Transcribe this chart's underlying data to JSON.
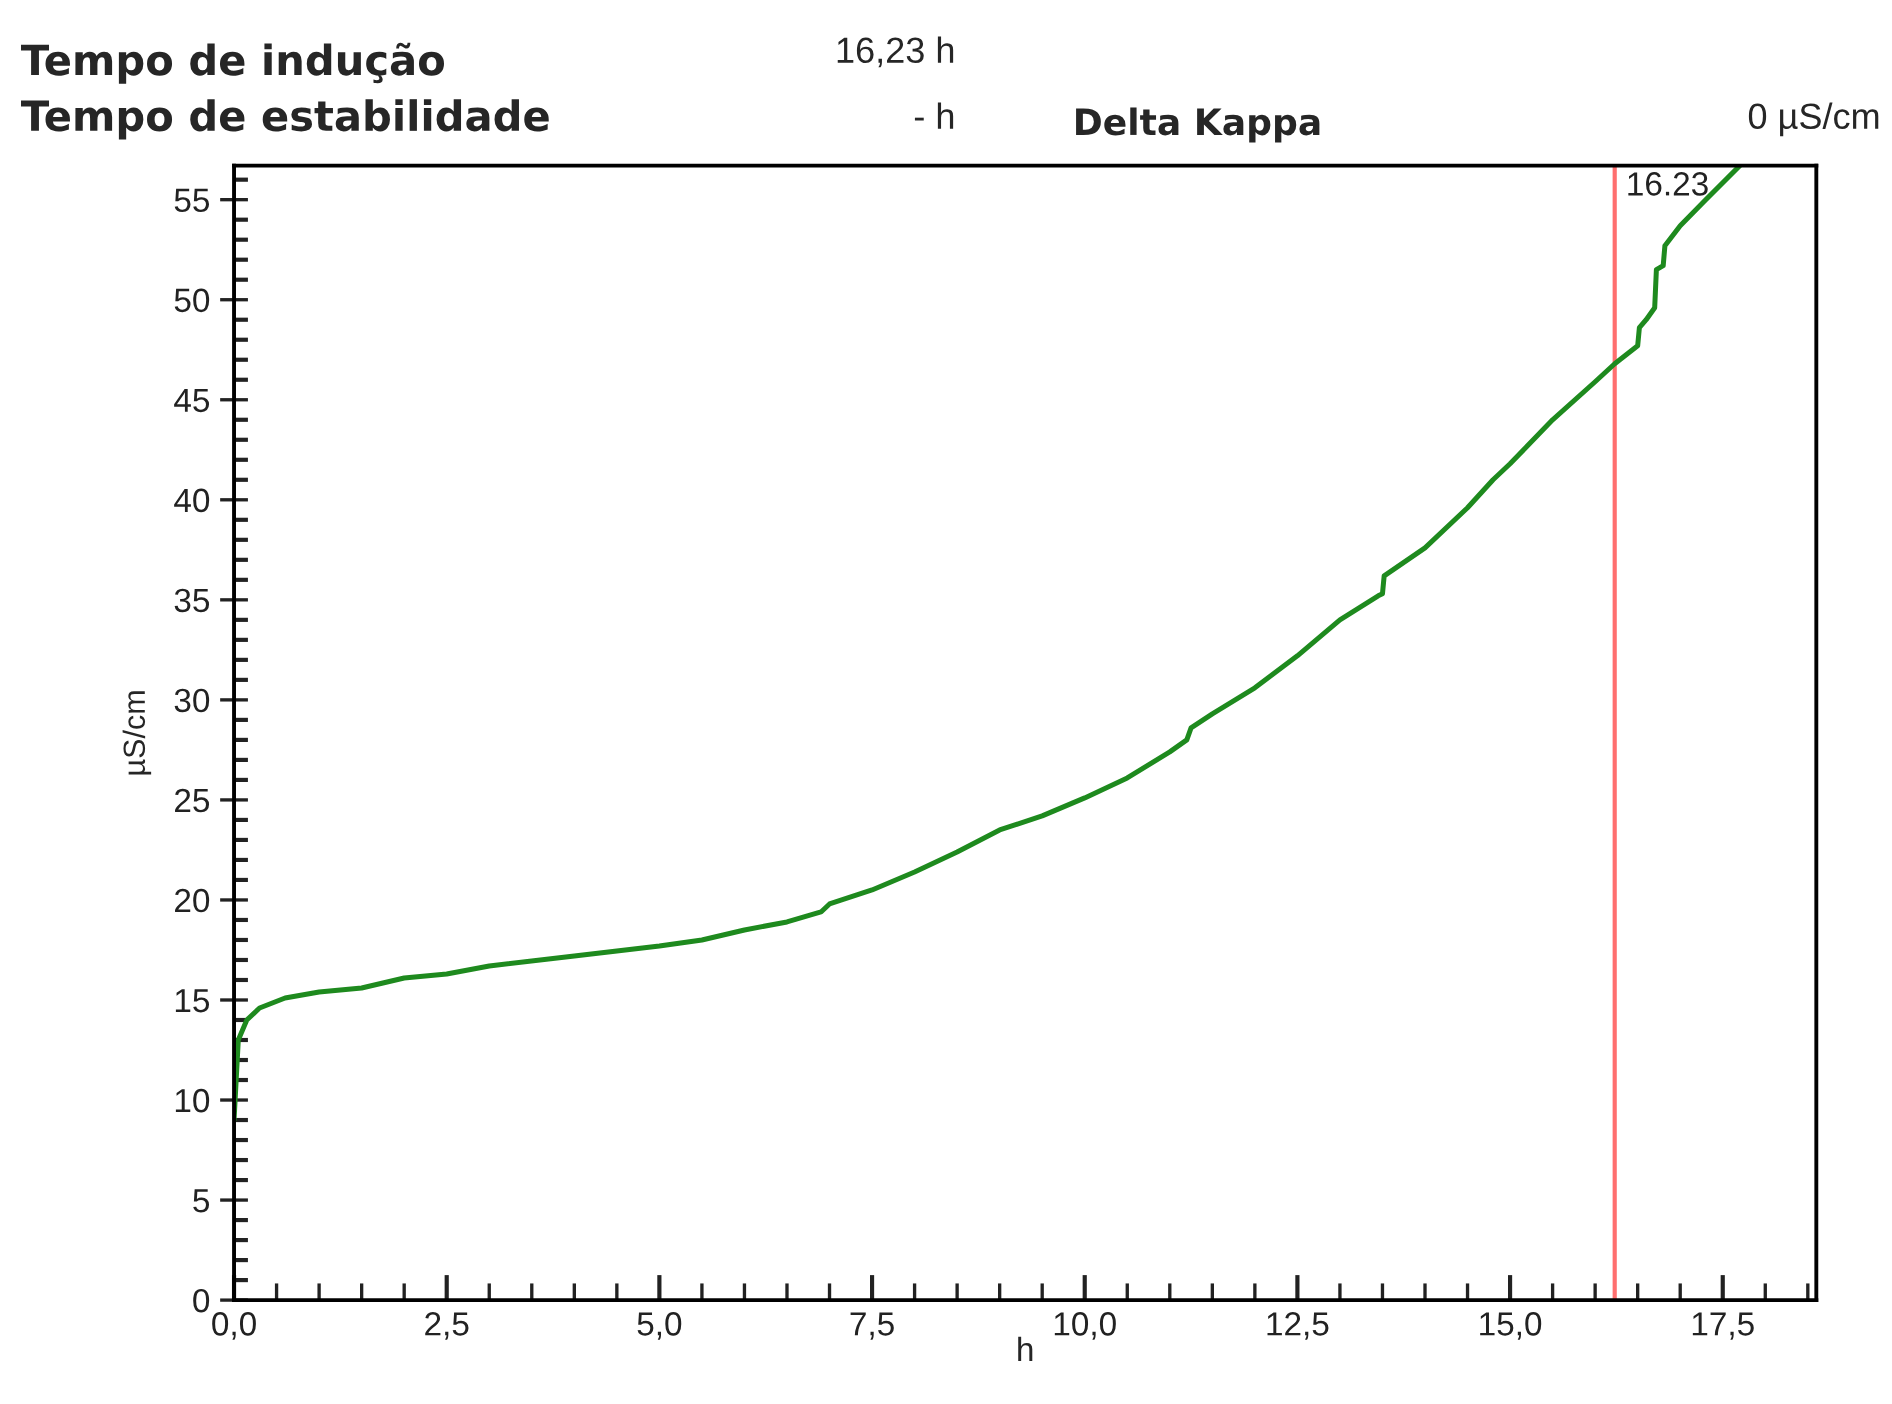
{
  "chart_data": {
    "type": "line",
    "xlabel": "h",
    "ylabel": "µS/cm",
    "annotations": [
      "Tempo de indução",
      "16,23 h",
      "Tempo de estabilidade",
      "- h",
      "Delta Kappa",
      "0 µS/cm"
    ],
    "x": [
      0,
      0.05,
      0.15,
      0.3,
      0.6,
      1,
      1.5,
      2,
      2.5,
      3,
      4,
      5,
      5.5,
      6,
      6.5,
      6.9,
      7,
      7.5,
      8,
      8.5,
      9,
      9.5,
      10,
      10.5,
      11,
      11.2,
      11.25,
      11.5,
      12,
      12.5,
      13,
      13.45,
      13.5,
      13.52,
      14,
      14.5,
      14.8,
      15,
      15.5,
      16,
      16.23,
      16.5,
      16.52,
      16.6,
      16.7,
      16.72,
      16.8,
      16.82,
      17,
      17.3,
      17.7
    ],
    "series": [
      {
        "color": "#1e8a1e",
        "values": [
          9,
          13,
          14,
          14.6,
          15.1,
          15.4,
          15.6,
          16.1,
          16.3,
          16.7,
          17.2,
          17.7,
          18.0,
          18.5,
          18.9,
          19.4,
          19.8,
          20.5,
          21.4,
          22.4,
          23.5,
          24.2,
          25.1,
          26.1,
          27.4,
          28,
          28.6,
          29.3,
          30.6,
          32.2,
          34,
          35.2,
          35.3,
          36.2,
          37.6,
          39.6,
          41,
          41.8,
          44,
          45.9,
          46.8,
          47.7,
          48.6,
          49,
          49.6,
          51.5,
          51.7,
          52.7,
          53.7,
          55,
          56.7
        ]
      }
    ],
    "ref_lines": [
      {
        "axis": "x",
        "value": 16.23,
        "label": "16.23",
        "color": "#ff6f6f"
      }
    ],
    "xlim": [
      0,
      18.6
    ],
    "ylim": [
      0,
      56.7
    ],
    "xticks": [
      {
        "value": 0,
        "label": "0,0"
      },
      {
        "value": 2.5,
        "label": "2,5"
      },
      {
        "value": 5,
        "label": "5,0"
      },
      {
        "value": 7.5,
        "label": "7,5"
      },
      {
        "value": 10,
        "label": "10,0"
      },
      {
        "value": 12.5,
        "label": "12,5"
      },
      {
        "value": 15,
        "label": "15,0"
      },
      {
        "value": 17.5,
        "label": "17,5"
      },
      {
        "value": 0.5,
        "label": null
      },
      {
        "value": 1,
        "label": null
      },
      {
        "value": 1.5,
        "label": null
      },
      {
        "value": 2,
        "label": null
      },
      {
        "value": 3,
        "label": null
      },
      {
        "value": 3.5,
        "label": null
      },
      {
        "value": 4,
        "label": null
      },
      {
        "value": 4.5,
        "label": null
      },
      {
        "value": 5.5,
        "label": null
      },
      {
        "value": 6,
        "label": null
      },
      {
        "value": 6.5,
        "label": null
      },
      {
        "value": 7,
        "label": null
      },
      {
        "value": 8,
        "label": null
      },
      {
        "value": 8.5,
        "label": null
      },
      {
        "value": 9,
        "label": null
      },
      {
        "value": 9.5,
        "label": null
      },
      {
        "value": 10.5,
        "label": null
      },
      {
        "value": 11,
        "label": null
      },
      {
        "value": 11.5,
        "label": null
      },
      {
        "value": 12,
        "label": null
      },
      {
        "value": 13,
        "label": null
      },
      {
        "value": 13.5,
        "label": null
      },
      {
        "value": 14,
        "label": null
      },
      {
        "value": 14.5,
        "label": null
      },
      {
        "value": 15.5,
        "label": null
      },
      {
        "value": 16,
        "label": null
      },
      {
        "value": 16.5,
        "label": null
      },
      {
        "value": 17,
        "label": null
      },
      {
        "value": 18,
        "label": null
      },
      {
        "value": 18.5,
        "label": null
      }
    ],
    "yticks": [
      0,
      5,
      10,
      15,
      20,
      25,
      30,
      35,
      40,
      45,
      50,
      55,
      {
        "value": 1,
        "label": null
      },
      {
        "value": 2,
        "label": null
      },
      {
        "value": 3,
        "label": null
      },
      {
        "value": 4,
        "label": null
      },
      {
        "value": 6,
        "label": null
      },
      {
        "value": 7,
        "label": null
      },
      {
        "value": 8,
        "label": null
      },
      {
        "value": 9,
        "label": null
      },
      {
        "value": 11,
        "label": null
      },
      {
        "value": 12,
        "label": null
      },
      {
        "value": 13,
        "label": null
      },
      {
        "value": 14,
        "label": null
      },
      {
        "value": 16,
        "label": null
      },
      {
        "value": 17,
        "label": null
      },
      {
        "value": 18,
        "label": null
      },
      {
        "value": 19,
        "label": null
      },
      {
        "value": 21,
        "label": null
      },
      {
        "value": 22,
        "label": null
      },
      {
        "value": 23,
        "label": null
      },
      {
        "value": 24,
        "label": null
      },
      {
        "value": 26,
        "label": null
      },
      {
        "value": 27,
        "label": null
      },
      {
        "value": 28,
        "label": null
      },
      {
        "value": 29,
        "label": null
      },
      {
        "value": 31,
        "label": null
      },
      {
        "value": 32,
        "label": null
      },
      {
        "value": 33,
        "label": null
      },
      {
        "value": 34,
        "label": null
      },
      {
        "value": 36,
        "label": null
      },
      {
        "value": 37,
        "label": null
      },
      {
        "value": 38,
        "label": null
      },
      {
        "value": 39,
        "label": null
      },
      {
        "value": 41,
        "label": null
      },
      {
        "value": 42,
        "label": null
      },
      {
        "value": 43,
        "label": null
      },
      {
        "value": 44,
        "label": null
      },
      {
        "value": 46,
        "label": null
      },
      {
        "value": 47,
        "label": null
      },
      {
        "value": 48,
        "label": null
      },
      {
        "value": 49,
        "label": null
      },
      {
        "value": 51,
        "label": null
      },
      {
        "value": 52,
        "label": null
      },
      {
        "value": 53,
        "label": null
      },
      {
        "value": 54,
        "label": null
      },
      {
        "value": 56,
        "label": null
      }
    ],
    "grid": false
  }
}
